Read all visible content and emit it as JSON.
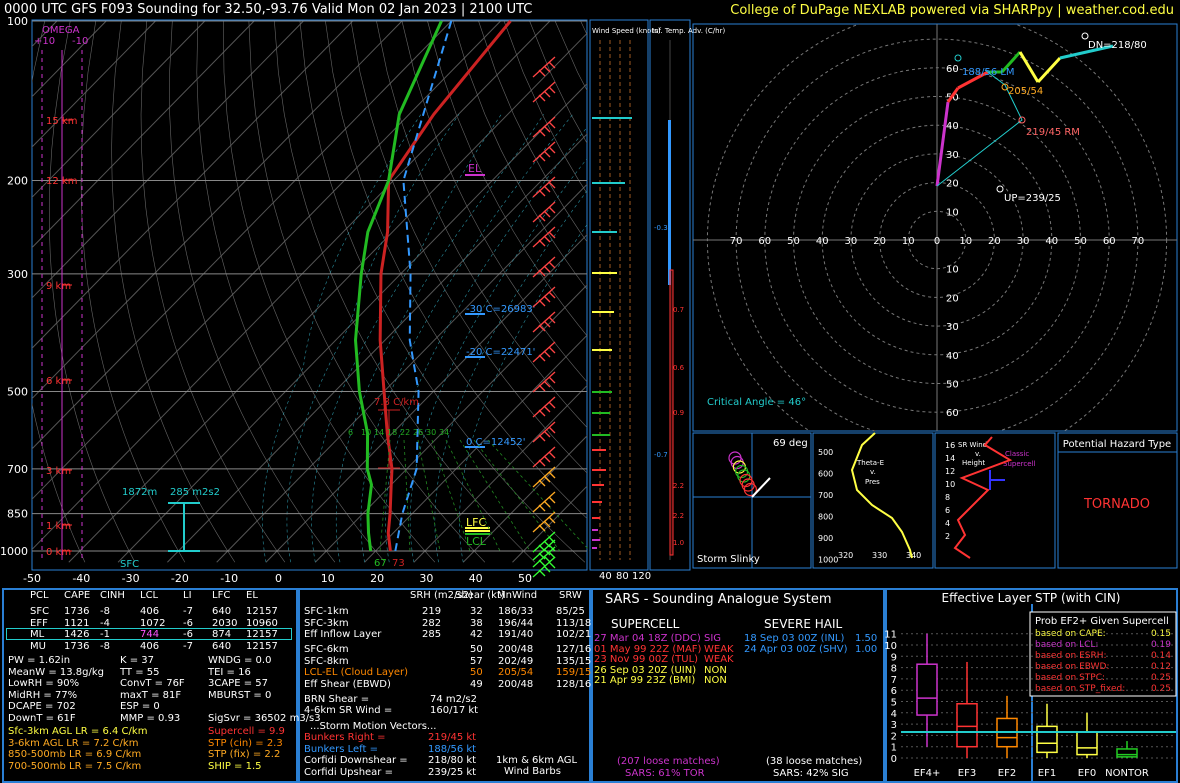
{
  "header": {
    "title": "0000 UTC GFS F093 Sounding for 32.50,-93.76 Valid  Mon 02 Jan 2023 | 2100 UTC",
    "credit": "College of DuPage NEXLAB powered via SHARPpy | weather.cod.edu"
  },
  "skewt": {
    "pressure_ticks": [
      "100",
      "200",
      "300",
      "500",
      "700",
      "850",
      "1000"
    ],
    "temp_ticks": [
      "-50",
      "-40",
      "-30",
      "-20",
      "-10",
      "0",
      "10",
      "20",
      "30",
      "40",
      "50"
    ],
    "height_labels": [
      "15 km",
      "12 km",
      "9 km",
      "6 km",
      "3 km",
      "1 km",
      "0 km"
    ],
    "omega_label": "OMEGA",
    "omega_ticks": [
      "+10",
      "-10"
    ],
    "el_label": "EL",
    "lfc_label": "LFC",
    "lcl_label": "LCL",
    "sfc_label": "SFC",
    "lr_label": "7.8 C/km",
    "isotherm_labels": [
      "-30 C=26983'",
      "-20 C=22471'",
      "0 C=12452'"
    ],
    "inflow_depth": "1872m",
    "inflow_srh": "285 m2s2",
    "sfc_temps": [
      "67",
      "73"
    ],
    "mix_labels": [
      "6",
      "10",
      "14",
      "18",
      "22",
      "26",
      "30",
      "34"
    ],
    "chart_data": {
      "type": "line",
      "title": "",
      "xlabel": "",
      "ylabel": "",
      "series": [
        {
          "name": "",
          "color": "#cc2222",
          "points": [
            [
              1000,
              23
            ],
            [
              925,
              19
            ],
            [
              850,
              15.5
            ],
            [
              750,
              10
            ],
            [
              700,
              7
            ],
            [
              600,
              -1
            ],
            [
              500,
              -10
            ],
            [
              400,
              -21
            ],
            [
              300,
              -34
            ],
            [
              250,
              -41
            ],
            [
              200,
              -51
            ],
            [
              150,
              -55
            ],
            [
              100,
              -58
            ]
          ]
        },
        {
          "name": "",
          "color": "#22bb22",
          "points": [
            [
              1000,
              19
            ],
            [
              925,
              15
            ],
            [
              850,
              11
            ],
            [
              750,
              6
            ],
            [
              700,
              2
            ],
            [
              600,
              -5
            ],
            [
              500,
              -15
            ],
            [
              400,
              -26
            ],
            [
              300,
              -38
            ],
            [
              250,
              -45
            ],
            [
              200,
              -51
            ],
            [
              150,
              -62
            ],
            [
              100,
              -72
            ]
          ]
        },
        {
          "name": "",
          "color": "#3399ff",
          "points": [
            [
              1000,
              24
            ],
            [
              850,
              18
            ],
            [
              700,
              12
            ],
            [
              500,
              -3
            ],
            [
              400,
              -15
            ],
            [
              300,
              -28
            ],
            [
              200,
              -48
            ],
            [
              100,
              -70
            ]
          ]
        }
      ]
    }
  },
  "wind_speed": {
    "title": "Wind Speed (knots)",
    "ticks": [
      "40",
      "80",
      "120"
    ]
  },
  "temp_adv": {
    "title": "Inf. Temp. Adv. (C/hr)",
    "labels": [
      "-0.3",
      "0.7",
      "0.6",
      "0.9",
      "-0.7",
      "2.2",
      "2.2",
      "1.0"
    ]
  },
  "hodograph": {
    "rings": [
      "10",
      "20",
      "30",
      "40",
      "50",
      "60"
    ],
    "xticks": [
      "70",
      "60",
      "50",
      "40",
      "30",
      "20",
      "10",
      "0",
      "10",
      "20",
      "30",
      "40",
      "50",
      "60",
      "70"
    ],
    "dn": "DN=218/80",
    "lm": "188/56 LM",
    "mean": "205/54",
    "rm": "219/45 RM",
    "up": "UP=239/25",
    "critical": "Critical Angle = 46°"
  },
  "slinky": {
    "deg": "69 deg",
    "label": "Storm Slinky"
  },
  "thetae": {
    "label": "Theta-E v. Pres",
    "yticks": [
      "500",
      "600",
      "700",
      "800",
      "900",
      "1000"
    ],
    "xticks": [
      "320",
      "330",
      "340"
    ]
  },
  "srwind": {
    "label": "SR Wind v. Height",
    "classic": "Classic Supercell",
    "yticks": [
      "16",
      "14",
      "12",
      "10",
      "8",
      "6",
      "4",
      "2"
    ]
  },
  "hazard": {
    "title": "Potential Hazard Type",
    "value": "TORNADO"
  },
  "parcels": {
    "headers": [
      "PCL",
      "CAPE",
      "CINH",
      "LCL",
      "LI",
      "LFC",
      "EL"
    ],
    "rows": [
      [
        "SFC",
        "1736",
        "-8",
        "406",
        "-7",
        "640",
        "12157"
      ],
      [
        "EFF",
        "1121",
        "-4",
        "1072",
        "-6",
        "2030",
        "10960"
      ],
      [
        "ML",
        "1426",
        "-1",
        "744",
        "-6",
        "874",
        "12157"
      ],
      [
        "MU",
        "1736",
        "-8",
        "406",
        "-7",
        "640",
        "12157"
      ]
    ],
    "indices": [
      [
        "PW = 1.62in",
        "K = 37",
        "WNDG = 0.0"
      ],
      [
        "MeanW = 13.8g/kg",
        "TT = 55",
        "TEI = 16"
      ],
      [
        "LowRH = 90%",
        "ConvT = 76F",
        "3CAPE = 57"
      ],
      [
        "MidRH = 77%",
        "maxT = 81F",
        "MBURST = 0"
      ],
      [
        "DCAPE = 702",
        "ESP = 0",
        ""
      ],
      [
        "DownT = 61F",
        "MMP = 0.93",
        "SigSvr = 36502 m3/s3"
      ]
    ],
    "lapse": [
      "Sfc-3km AGL LR = 6.4 C/km",
      "3-6km AGL LR = 7.2 C/km",
      "850-500mb LR = 6.9 C/km",
      "700-500mb LR = 7.5 C/km"
    ],
    "composites": [
      "Supercell = 9.9",
      "STP (cin) = 2.3",
      "STP (fix) = 2.2",
      "SHIP = 1.5"
    ]
  },
  "kinematics": {
    "headers": [
      "SRH (m2/s2)",
      "Shear (kt)",
      "MnWind",
      "SRW"
    ],
    "rows": [
      [
        "SFC-1km",
        "219",
        "32",
        "186/33",
        "85/25"
      ],
      [
        "SFC-3km",
        "282",
        "38",
        "196/44",
        "113/18"
      ],
      [
        "Eff Inflow Layer",
        "285",
        "42",
        "191/40",
        "102/21"
      ],
      [
        "SFC-6km",
        "",
        "50",
        "200/48",
        "127/16"
      ],
      [
        "SFC-8km",
        "",
        "57",
        "202/49",
        "135/15"
      ],
      [
        "LCL-EL (Cloud Layer)",
        "",
        "50",
        "205/54",
        "159/15"
      ],
      [
        "Eff Shear (EBWD)",
        "",
        "49",
        "200/48",
        "128/16"
      ]
    ],
    "brn": "BRN Shear =",
    "brn_val": "74 m2/s2",
    "srwind46": "4-6km SR Wind =",
    "srwind46_val": "160/17 kt",
    "storm_title": "...Storm Motion Vectors...",
    "motions": [
      [
        "Bunkers Right =",
        "219/45 kt"
      ],
      [
        "Bunkers Left =",
        "188/56 kt"
      ],
      [
        "Corfidi Downshear =",
        "218/80 kt"
      ],
      [
        "Corfidi Upshear =",
        "239/25 kt"
      ]
    ],
    "barb_label": "1km & 6km AGL Wind Barbs"
  },
  "sars": {
    "title": "SARS - Sounding Analogue System",
    "supercell": "SUPERCELL",
    "hail": "SEVERE HAIL",
    "sc_matches": [
      [
        "27 Mar 04 18Z (DDC)",
        "SIG"
      ],
      [
        "01 May 99 22Z (MAF)",
        "WEAK"
      ],
      [
        "23 Nov 99 00Z (TUL)",
        "WEAK"
      ],
      [
        "26 Sep 03 20Z (UIN)",
        "NON"
      ],
      [
        "21 Apr 99 23Z (BMI)",
        "NON"
      ]
    ],
    "hail_matches": [
      [
        "18 Sep 03 00Z (INL)",
        "1.50"
      ],
      [
        "24 Apr 03 00Z (SHV)",
        "1.00"
      ]
    ],
    "sc_loose": "(207 loose matches)",
    "sc_tor": "SARS: 61% TOR",
    "hail_loose": "(38 loose matches)",
    "hail_sig": "SARS: 42% SIG"
  },
  "stp": {
    "title": "Effective Layer STP (with CIN)",
    "prob_title": "Prob EF2+ Given Supercell",
    "probs": [
      [
        "based on CAPE:",
        "0.15"
      ],
      [
        "based on LCL:",
        "0.19"
      ],
      [
        "based on ESRH:",
        "0.14"
      ],
      [
        "based on EBWD:",
        "0.12"
      ],
      [
        "based on STPC:",
        "0.25"
      ],
      [
        "based on STP_fixed:",
        "0.25"
      ]
    ],
    "yticks": [
      "11",
      "10",
      "9",
      "8",
      "7",
      "6",
      "5",
      "4",
      "3",
      "2",
      "1",
      "0"
    ],
    "categories": [
      "EF4+",
      "EF3",
      "EF2",
      "EF1",
      "EF0",
      "NONTOR"
    ],
    "value": 2.3
  }
}
